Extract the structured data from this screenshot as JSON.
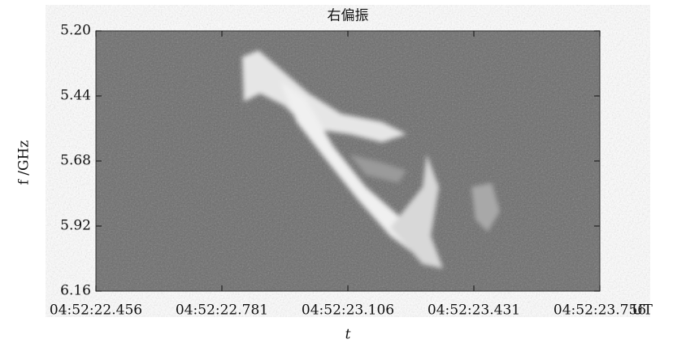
{
  "chart_data": {
    "type": "spectrogram",
    "title": "右偏振",
    "x_label": "t",
    "x_unit": "UT",
    "y_label": "f /GHz",
    "xticks": [
      "04:52:22.456",
      "04:52:22.781",
      "04:52:23.106",
      "04:52:23.431",
      "04:52:23.756"
    ],
    "ylim": [
      5.2,
      6.16
    ],
    "y_inverted": true,
    "yticks": [
      {
        "value": 5.2,
        "label": "5.20"
      },
      {
        "value": 5.44,
        "label": "5.44"
      },
      {
        "value": 5.68,
        "label": "5.68"
      },
      {
        "value": 5.92,
        "label": "5.92"
      },
      {
        "value": 6.16,
        "label": "6.16"
      }
    ]
  }
}
